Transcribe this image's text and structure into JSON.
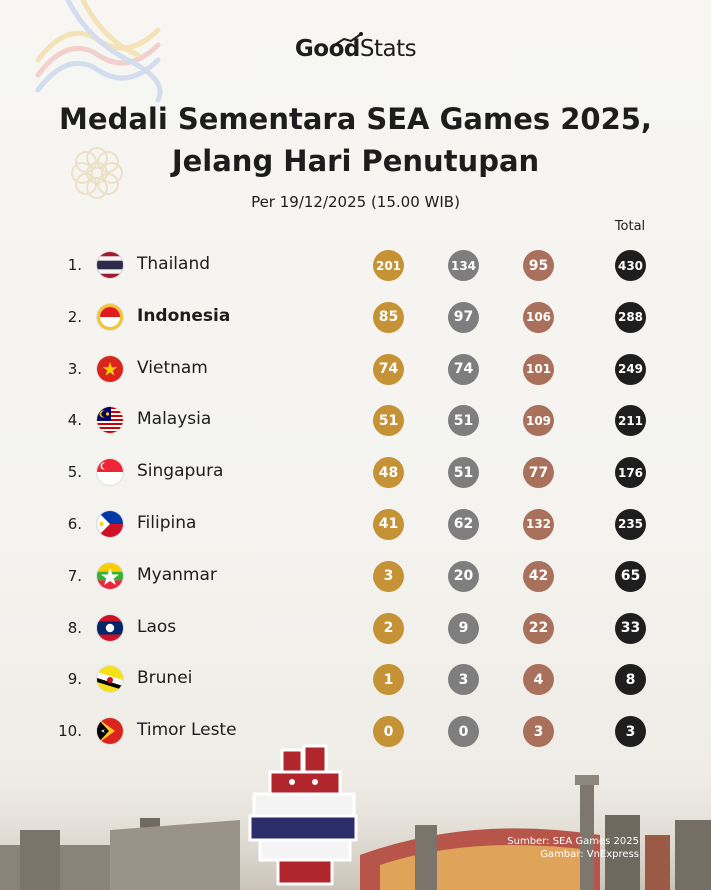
{
  "brand": {
    "good": "Good",
    "stats": "Stats"
  },
  "title_line1": "Medali Sementara SEA Games 2025,",
  "title_line2": "Jelang Hari Penutupan",
  "subtitle": "Per 19/12/2025 (15.00 WIB)",
  "total_label": "Total",
  "source_line1": "Sumber: SEA Games 2025",
  "source_line2": "Gambar: VnExpress",
  "colors": {
    "gold": "#c59336",
    "silver": "#7e7e7e",
    "bronze": "#a9705c",
    "total": "#1e1e1e"
  },
  "chart_data": {
    "type": "table",
    "columns": [
      "",
      "",
      "",
      "",
      "Total"
    ],
    "rows": [
      {
        "rank": "1.",
        "country": "Thailand",
        "flag": "thailand-flag",
        "gold": 201,
        "silver": 134,
        "bronze": 95,
        "total": 430
      },
      {
        "rank": "2.",
        "country": "Indonesia",
        "flag": "indonesia-flag",
        "gold": 85,
        "silver": 97,
        "bronze": 106,
        "total": 288,
        "highlight": true
      },
      {
        "rank": "3.",
        "country": "Vietnam",
        "flag": "vietnam-flag",
        "gold": 74,
        "silver": 74,
        "bronze": 101,
        "total": 249
      },
      {
        "rank": "4.",
        "country": "Malaysia",
        "flag": "malaysia-flag",
        "gold": 51,
        "silver": 51,
        "bronze": 109,
        "total": 211
      },
      {
        "rank": "5.",
        "country": "Singapura",
        "flag": "singapore-flag",
        "gold": 48,
        "silver": 51,
        "bronze": 77,
        "total": 176
      },
      {
        "rank": "6.",
        "country": "Filipina",
        "flag": "philippines-flag",
        "gold": 41,
        "silver": 62,
        "bronze": 132,
        "total": 235
      },
      {
        "rank": "7.",
        "country": "Myanmar",
        "flag": "myanmar-flag",
        "gold": 3,
        "silver": 20,
        "bronze": 42,
        "total": 65
      },
      {
        "rank": "8.",
        "country": "Laos",
        "flag": "laos-flag",
        "gold": 2,
        "silver": 9,
        "bronze": 22,
        "total": 33
      },
      {
        "rank": "9.",
        "country": "Brunei",
        "flag": "brunei-flag",
        "gold": 1,
        "silver": 3,
        "bronze": 4,
        "total": 8
      },
      {
        "rank": "10.",
        "country": "Timor Leste",
        "flag": "timor-leste-flag",
        "gold": 0,
        "silver": 0,
        "bronze": 3,
        "total": 3
      }
    ]
  }
}
